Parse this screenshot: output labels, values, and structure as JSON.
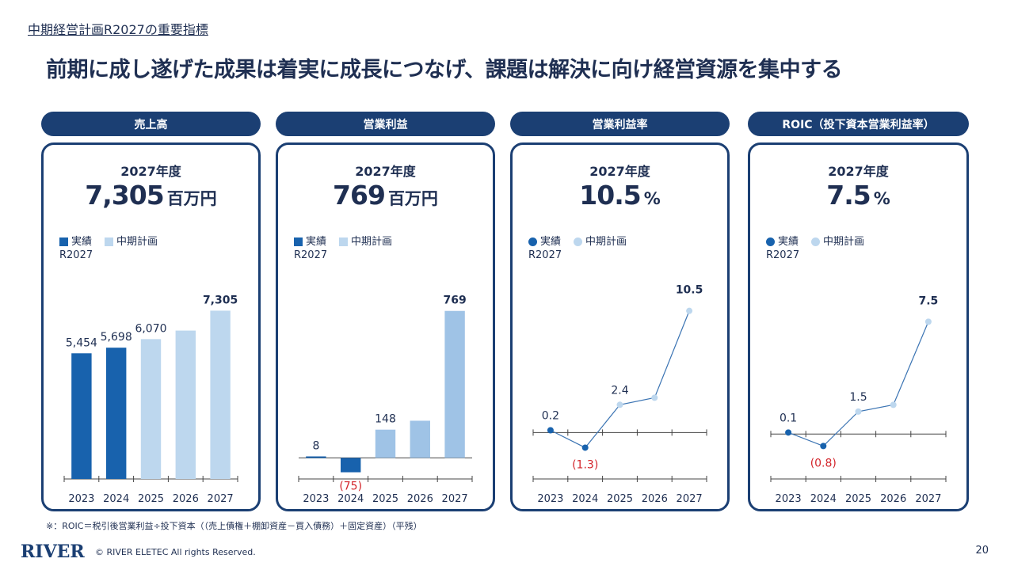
{
  "subtitle": "中期経営計画R2027の重要指標",
  "headline": "前期に成し遂げた成果は着実に成長につなげ、課題は解決に向け経営資源を集中する",
  "colors": {
    "navy": "#1b3f73",
    "actual": "#1862ad",
    "plan": "#bdd7ee",
    "planBar2": "#9fc3e6",
    "negative": "#d3262c"
  },
  "legend": {
    "actual": "実績",
    "plan": "中期計画",
    "plan_sub": "R2027"
  },
  "panels": [
    {
      "title": "売上高",
      "year_label": "2027年度",
      "big_value": "7,305",
      "big_unit": "百万円",
      "chart_data": {
        "type": "bar",
        "categories": [
          "2023",
          "2024",
          "2025",
          "2026",
          "2027"
        ],
        "values": [
          5454,
          5698,
          6070,
          null,
          7305
        ],
        "kinds": [
          "actual",
          "actual",
          "plan",
          "plan",
          "plan"
        ],
        "labels": [
          "5,454",
          "5,698",
          "6,070",
          "",
          "7,305"
        ],
        "ylim": [
          0,
          7800
        ]
      }
    },
    {
      "title": "営業利益",
      "year_label": "2027年度",
      "big_value": "769",
      "big_unit": "百万円",
      "chart_data": {
        "type": "bar",
        "categories": [
          "2023",
          "2024",
          "2025",
          "2026",
          "2027"
        ],
        "values": [
          8,
          -75,
          148,
          null,
          769
        ],
        "kinds": [
          "actual",
          "actual",
          "plan",
          "plan",
          "plan"
        ],
        "labels": [
          "8",
          "(75)",
          "148",
          "",
          "769"
        ],
        "ylim": [
          -110,
          830
        ]
      }
    },
    {
      "title": "営業利益率",
      "year_label": "2027年度",
      "big_value": "10.5",
      "big_unit": "%",
      "chart_data": {
        "type": "line",
        "categories": [
          "2023",
          "2024",
          "2025",
          "2026",
          "2027"
        ],
        "values": [
          0.2,
          -1.3,
          2.4,
          null,
          10.5
        ],
        "kinds": [
          "actual",
          "actual",
          "plan",
          "plan",
          "plan"
        ],
        "labels": [
          "0.2",
          "(1.3)",
          "2.4",
          "",
          "10.5"
        ],
        "ylim": [
          -4,
          11.5
        ]
      }
    },
    {
      "title": "ROIC（投下資本営業利益率）",
      "year_label": "2027年度",
      "big_value": "7.5",
      "big_unit": "%",
      "chart_data": {
        "type": "line",
        "categories": [
          "2023",
          "2024",
          "2025",
          "2026",
          "2027"
        ],
        "values": [
          0.1,
          -0.8,
          1.5,
          null,
          7.5
        ],
        "kinds": [
          "actual",
          "actual",
          "plan",
          "plan",
          "plan"
        ],
        "labels": [
          "0.1",
          "(0.8)",
          "1.5",
          "",
          "7.5"
        ],
        "ylim": [
          -3,
          9
        ]
      }
    }
  ],
  "footnote": "※：ROIC＝税引後営業利益÷投下資本（（売上債権＋棚卸資産－買入債務）＋固定資産）（平残）",
  "logo_text": "RIVER",
  "copyright": "© RIVER ELETEC All rights Reserved.",
  "page_number": "20"
}
